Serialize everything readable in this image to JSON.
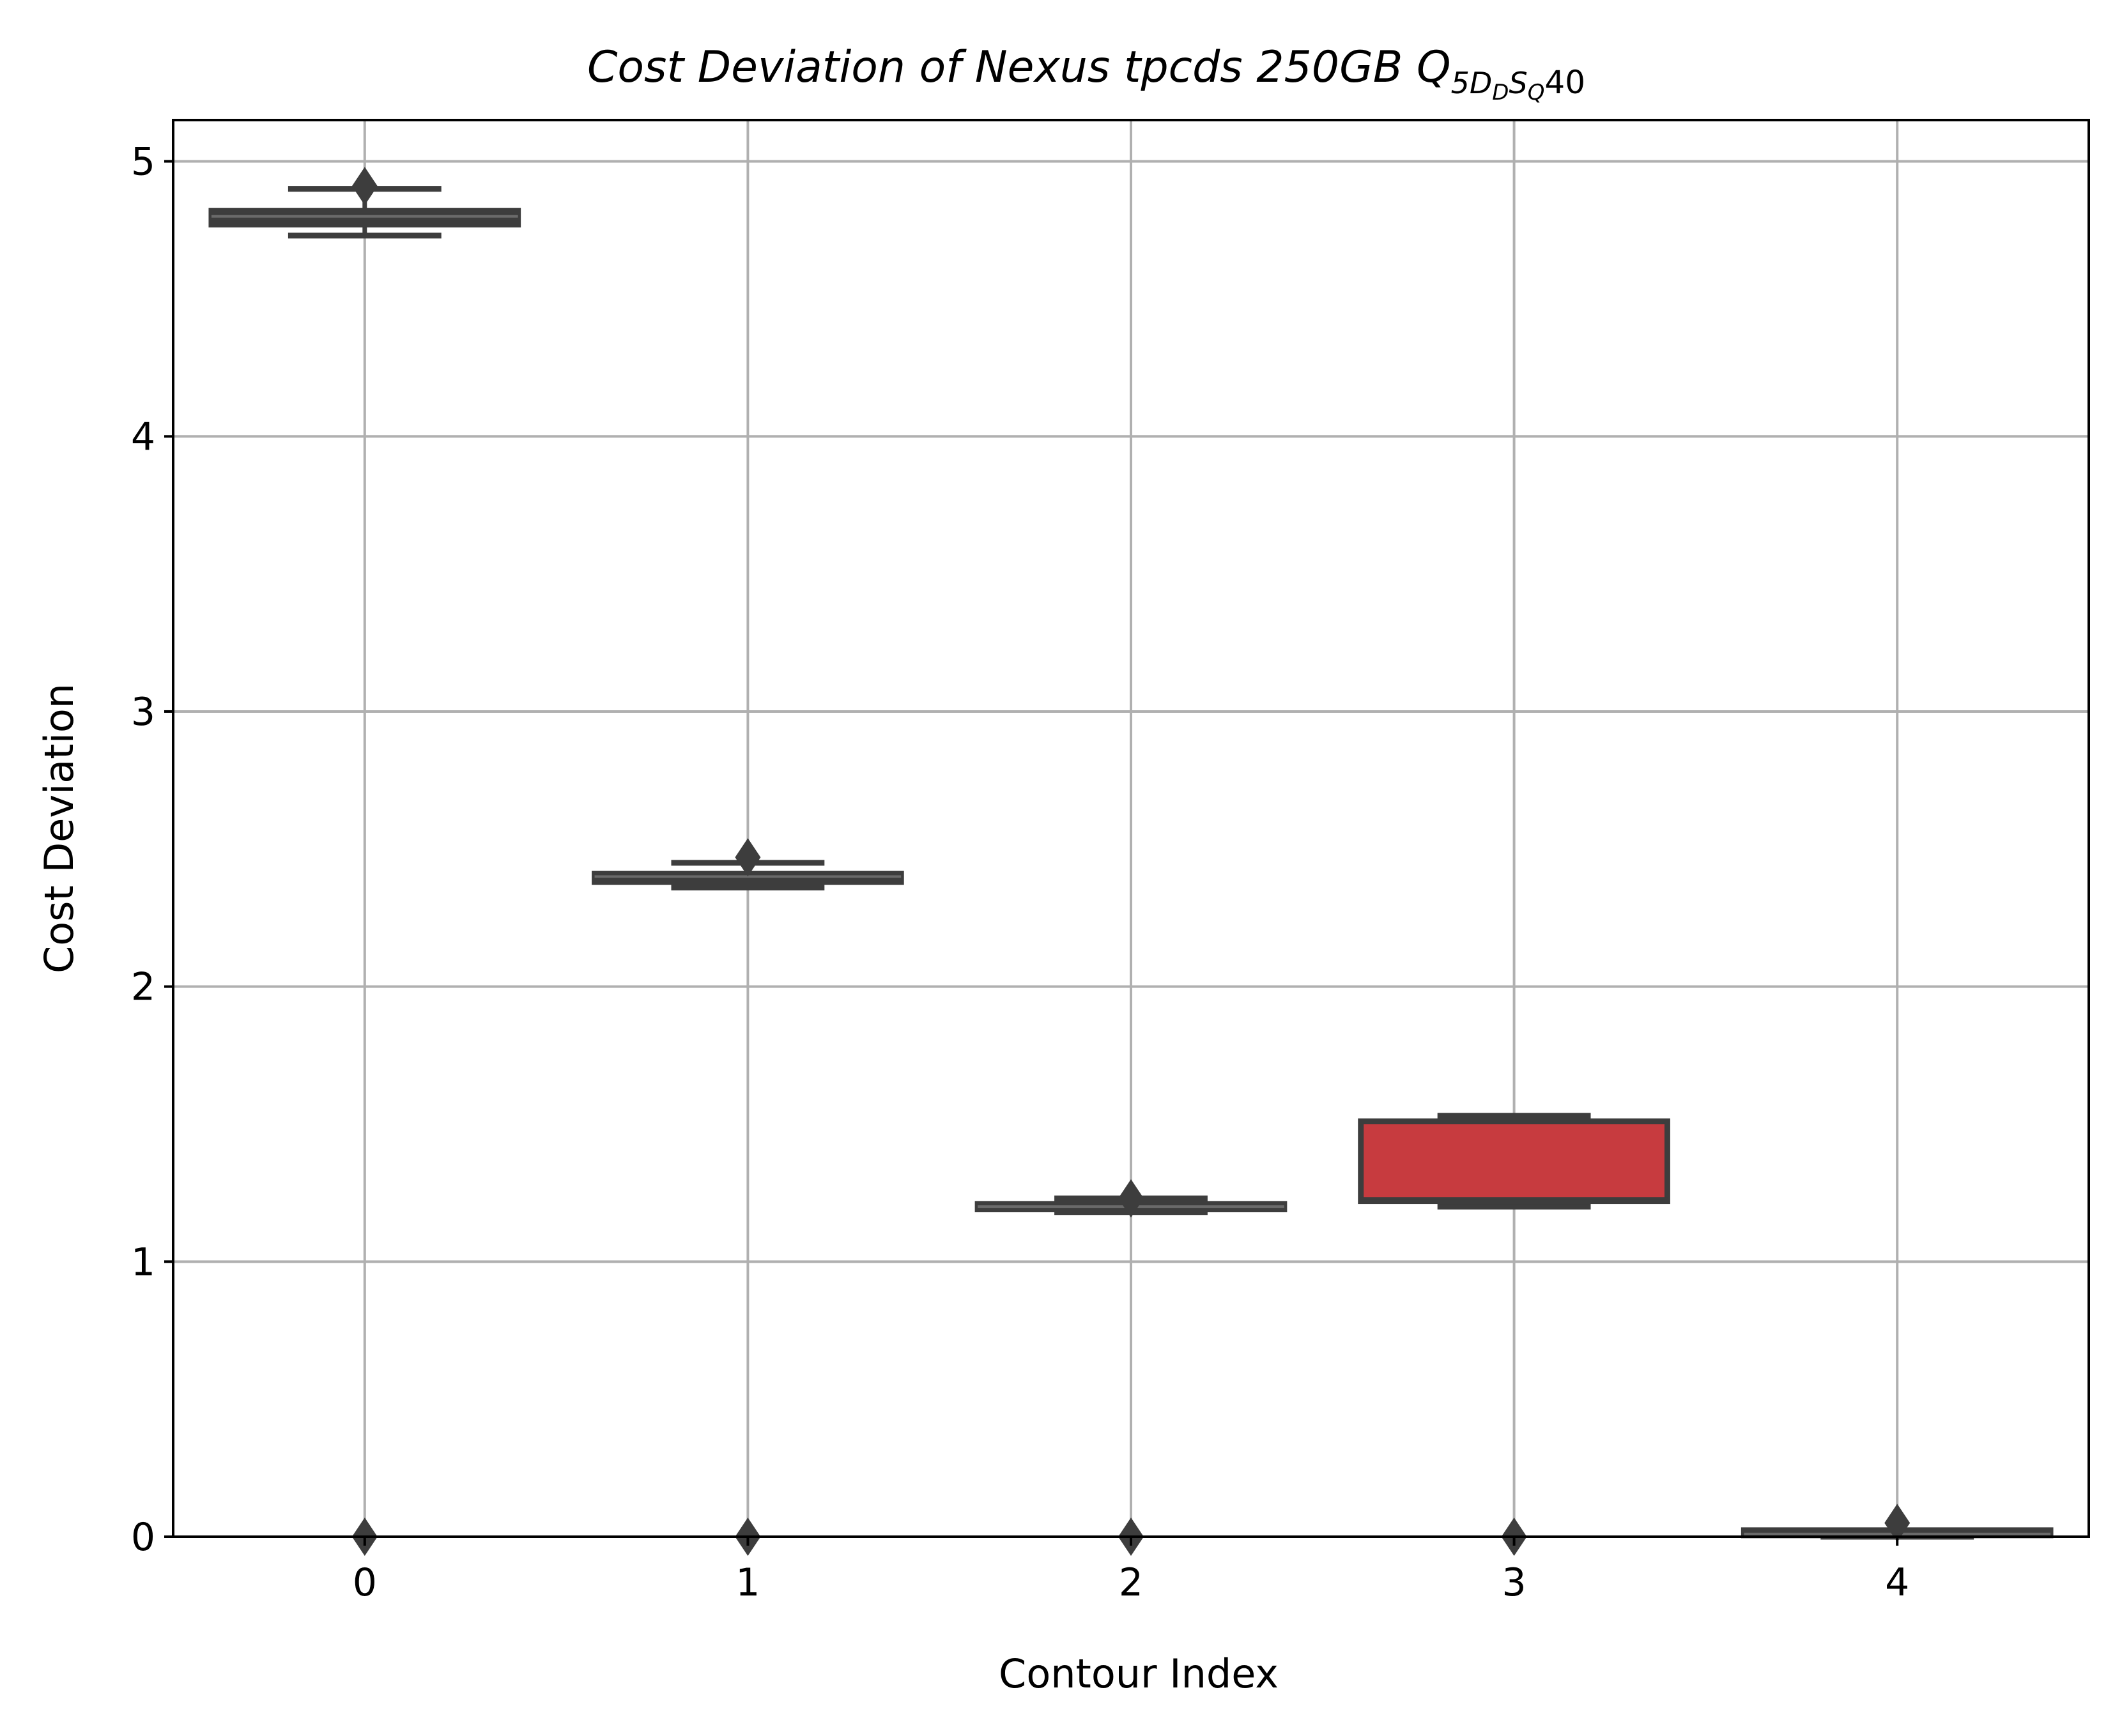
{
  "chart_data": {
    "type": "box",
    "title": "Cost Deviation of Nexus tpcds  250GB  Q",
    "title_subscript": "5D",
    "title_subscript2": "D",
    "title_subscript3": "S",
    "title_subscript4": "Q",
    "title_tail": "40",
    "xlabel": "Contour Index",
    "ylabel": "Cost Deviation",
    "categories": [
      "0",
      "1",
      "2",
      "3",
      "4"
    ],
    "yticks": [
      "0",
      "1",
      "2",
      "3",
      "4",
      "5"
    ],
    "ylim": [
      0,
      5.15
    ],
    "xlim": [
      -0.5,
      4.5
    ],
    "grid": true,
    "box_color": "#3d3d3d",
    "fill_colors": [
      "#3d3d3d",
      "#3d3d3d",
      "#3d3d3d",
      "#c73b3f",
      "#3d3d3d"
    ],
    "boxes": [
      {
        "category": "0",
        "whislo": 4.73,
        "q1": 4.77,
        "med": 4.8,
        "q3": 4.82,
        "whishi": 4.9,
        "fliers": [
          4.91,
          0.0
        ]
      },
      {
        "category": "1",
        "whislo": 2.36,
        "q1": 2.38,
        "med": 2.4,
        "q3": 2.41,
        "whishi": 2.45,
        "fliers": [
          2.47,
          0.0
        ]
      },
      {
        "category": "2",
        "whislo": 1.18,
        "q1": 1.19,
        "med": 1.2,
        "q3": 1.21,
        "whishi": 1.23,
        "fliers": [
          1.23,
          0.0
        ]
      },
      {
        "category": "3",
        "whislo": 1.2,
        "q1": 1.22,
        "med": 1.23,
        "q3": 1.51,
        "whishi": 1.53,
        "fliers": [
          0.0
        ]
      },
      {
        "category": "4",
        "whislo": 0.0,
        "q1": 0.005,
        "med": 0.01,
        "q3": 0.015,
        "whishi": 0.02,
        "fliers": [
          0.05
        ]
      }
    ]
  }
}
